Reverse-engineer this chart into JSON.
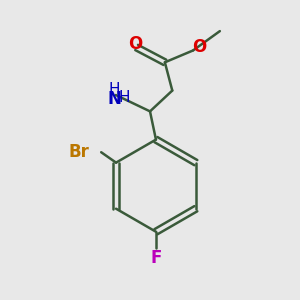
{
  "background_color": "#e8e8e8",
  "bond_color": "#3a5a3a",
  "atom_colors": {
    "O": "#dd0000",
    "N": "#0000bb",
    "Br": "#bb7700",
    "F": "#bb00bb",
    "C": "#000000"
  },
  "line_width": 1.8,
  "font_size_atoms": 11,
  "font_size_sub": 9
}
